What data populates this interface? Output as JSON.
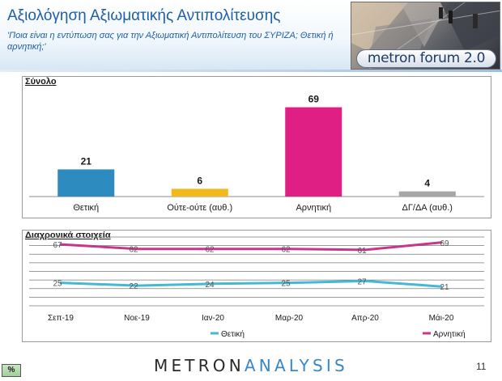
{
  "header": {
    "title": "Αξιολόγηση Αξιωματικής Αντιπολίτευσης",
    "subtitle": "'Ποια είναι η εντύπωση σας για την Αξιωματική Αντιπολίτευση του ΣΥΡΙΖΑ; Θετική ή αρνητική;'",
    "banner_label": "metron forum 2.0"
  },
  "panels": {
    "top_title": "Σύνολο",
    "bottom_title": "Διαχρονικά στοιχεία"
  },
  "footer": {
    "brand_part1": "METRON",
    "brand_part2": "ANALYSIS",
    "page_number": "11",
    "percent_label": "%"
  },
  "colors": {
    "positive": "#2e8bc0",
    "neutral": "#f2b81c",
    "negative": "#e01f84",
    "na": "#a6a6a6",
    "trend_positive": "#44b8d4",
    "trend_negative": "#c8368c",
    "title_blue": "#1f5fa5"
  },
  "chart_data": [
    {
      "type": "bar",
      "categories": [
        "Θετική",
        "Ούτε-ούτε (αυθ.)",
        "Αρνητική",
        "ΔΓ/ΔΑ (αυθ.)"
      ],
      "values": [
        21,
        6,
        69,
        4
      ],
      "ylim": [
        0,
        75
      ],
      "grid": false,
      "legend": "none"
    },
    {
      "type": "line",
      "x": [
        "Σεπ-19",
        "Νοε-19",
        "Ιαν-20",
        "Μαρ-20",
        "Απρ-20",
        "Μάι-20"
      ],
      "series": [
        {
          "name": "Θετική",
          "values": [
            25,
            22,
            24,
            25,
            27,
            21
          ]
        },
        {
          "name": "Αρνητική",
          "values": [
            67,
            62,
            62,
            62,
            61,
            69
          ]
        }
      ],
      "ylim": [
        0,
        75
      ],
      "grid": true,
      "legend": "bottom"
    }
  ]
}
